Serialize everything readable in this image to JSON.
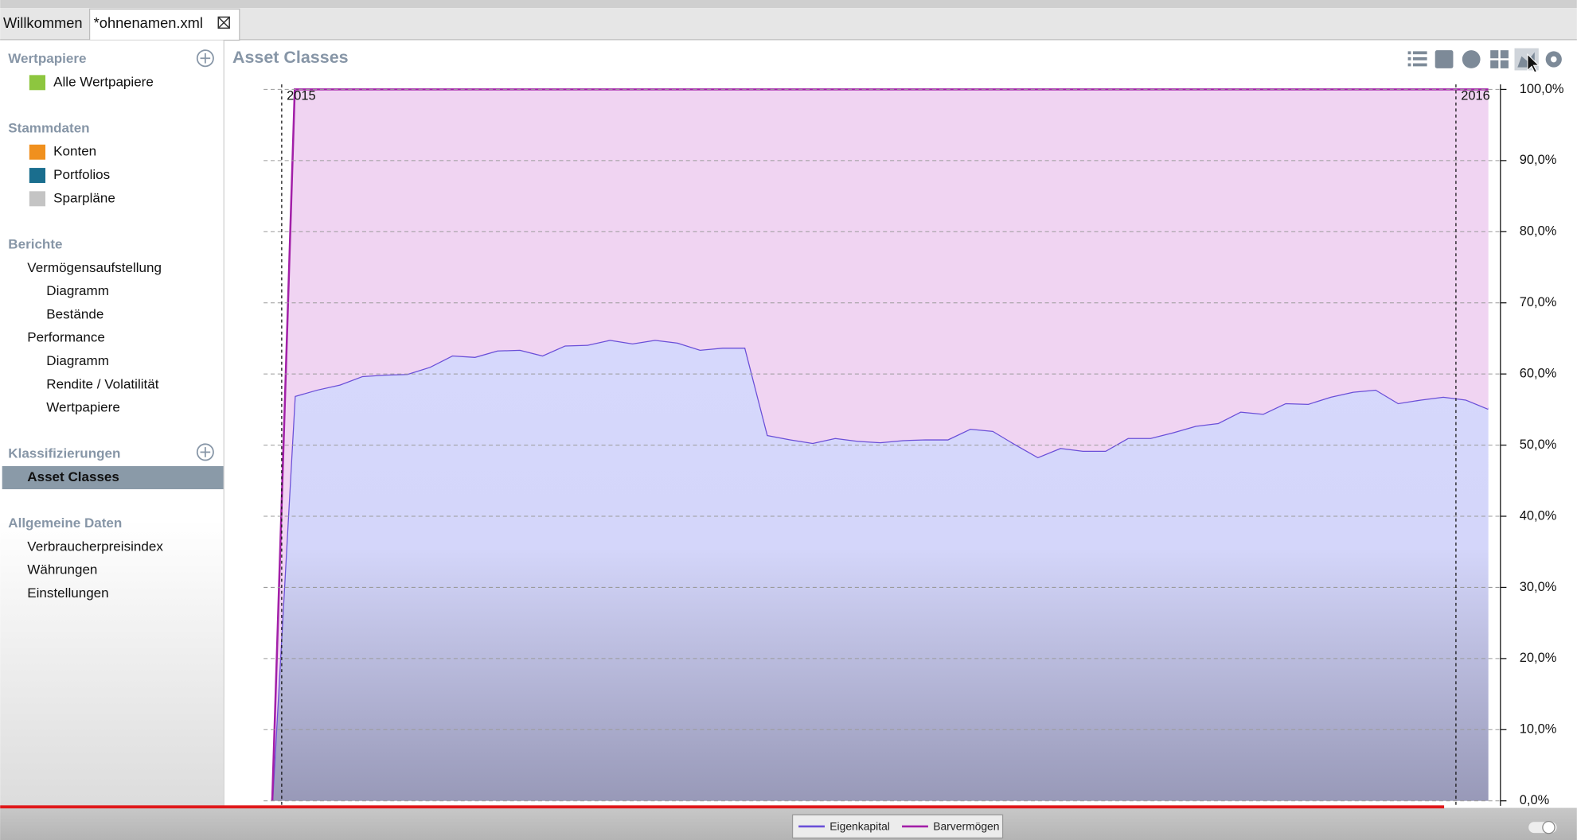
{
  "tabs": [
    "Willkommen",
    "*ohnenamen.xml"
  ],
  "sidebar": {
    "sections": [
      {
        "title": "Wertpapiere",
        "items": [
          {
            "label": "Alle Wertpapiere"
          }
        ]
      },
      {
        "title": "Stammdaten",
        "items": [
          {
            "label": "Konten"
          },
          {
            "label": "Portfolios"
          },
          {
            "label": "Sparpläne"
          }
        ]
      },
      {
        "title": "Berichte",
        "items": [
          {
            "label": "Vermögensaufstellung",
            "children": [
              "Diagramm",
              "Bestände"
            ]
          },
          {
            "label": "Performance",
            "children": [
              "Diagramm",
              "Rendite / Volatilität",
              "Wertpapiere"
            ]
          }
        ]
      },
      {
        "title": "Klassifizierungen",
        "items": [
          {
            "label": "Asset Classes",
            "selected": true
          }
        ]
      },
      {
        "title": "Allgemeine Daten",
        "items": [
          {
            "label": "Verbraucherpreisindex"
          },
          {
            "label": "Währungen"
          },
          {
            "label": "Einstellungen"
          }
        ]
      }
    ]
  },
  "chart_data": {
    "type": "stacked_area",
    "title": "Asset Classes",
    "x": [
      0,
      1,
      2,
      3,
      4,
      5,
      6,
      7,
      8,
      9,
      10,
      11,
      12,
      13,
      14,
      15,
      16,
      17,
      18,
      19,
      20,
      21,
      22,
      23,
      24,
      25,
      26,
      27,
      28,
      29,
      30,
      31,
      32,
      33,
      34,
      35,
      36,
      37,
      38,
      39,
      40,
      41,
      42,
      43,
      44,
      45,
      46,
      47,
      48,
      49,
      50,
      51,
      52,
      53,
      54
    ],
    "xlim": [
      0,
      54
    ],
    "xticks": [
      {
        "value": 0.42,
        "label": "2015"
      },
      {
        "value": 52.56,
        "label": "2016"
      }
    ],
    "ylim": [
      0,
      100
    ],
    "yticks": [
      {
        "value": 0,
        "label": "0,0%"
      },
      {
        "value": 10,
        "label": "10,0%"
      },
      {
        "value": 20,
        "label": "20,0%"
      },
      {
        "value": 30,
        "label": "30,0%"
      },
      {
        "value": 40,
        "label": "40,0%"
      },
      {
        "value": 50,
        "label": "50,0%"
      },
      {
        "value": 60,
        "label": "60,0%"
      },
      {
        "value": 70,
        "label": "70,0%"
      },
      {
        "value": 80,
        "label": "80,0%"
      },
      {
        "value": 90,
        "label": "90,0%"
      },
      {
        "value": 100,
        "label": "100,0%"
      }
    ],
    "grid": true,
    "legend": "bottom",
    "series": [
      {
        "name": "Eigenkapital",
        "color": "#6a4fd8",
        "fill": "#d6d8fc",
        "values": [
          0,
          56.9,
          57.8,
          58.5,
          59.7,
          59.9,
          60.0,
          61.0,
          62.6,
          62.4,
          63.3,
          63.4,
          62.6,
          64.0,
          64.1,
          64.8,
          64.3,
          64.8,
          64.4,
          63.4,
          63.7,
          63.7,
          51.4,
          50.8,
          50.3,
          51.0,
          50.6,
          50.4,
          50.7,
          50.8,
          50.8,
          52.3,
          52.0,
          50.1,
          48.3,
          49.6,
          49.2,
          49.2,
          51.0,
          51.0,
          51.8,
          52.7,
          53.1,
          54.7,
          54.4,
          55.9,
          55.8,
          56.8,
          57.5,
          57.8,
          55.9,
          56.4,
          56.8,
          56.4,
          55.1
        ]
      },
      {
        "name": "Barvermögen",
        "color": "#a21fa8",
        "fill": "#f0d4f2",
        "values": [
          0,
          43.1,
          42.2,
          41.5,
          40.3,
          40.1,
          40.0,
          39.0,
          37.4,
          37.6,
          36.7,
          36.6,
          37.4,
          36.0,
          35.9,
          35.2,
          35.7,
          35.2,
          35.6,
          36.6,
          36.3,
          36.3,
          48.6,
          49.2,
          49.7,
          49.0,
          49.4,
          49.6,
          49.3,
          49.2,
          49.2,
          47.7,
          48.0,
          49.9,
          51.7,
          50.4,
          50.8,
          50.8,
          49.0,
          49.0,
          48.2,
          47.3,
          46.9,
          45.3,
          45.6,
          44.1,
          44.2,
          43.2,
          42.5,
          42.2,
          44.1,
          43.6,
          43.2,
          43.6,
          44.9
        ]
      }
    ]
  }
}
